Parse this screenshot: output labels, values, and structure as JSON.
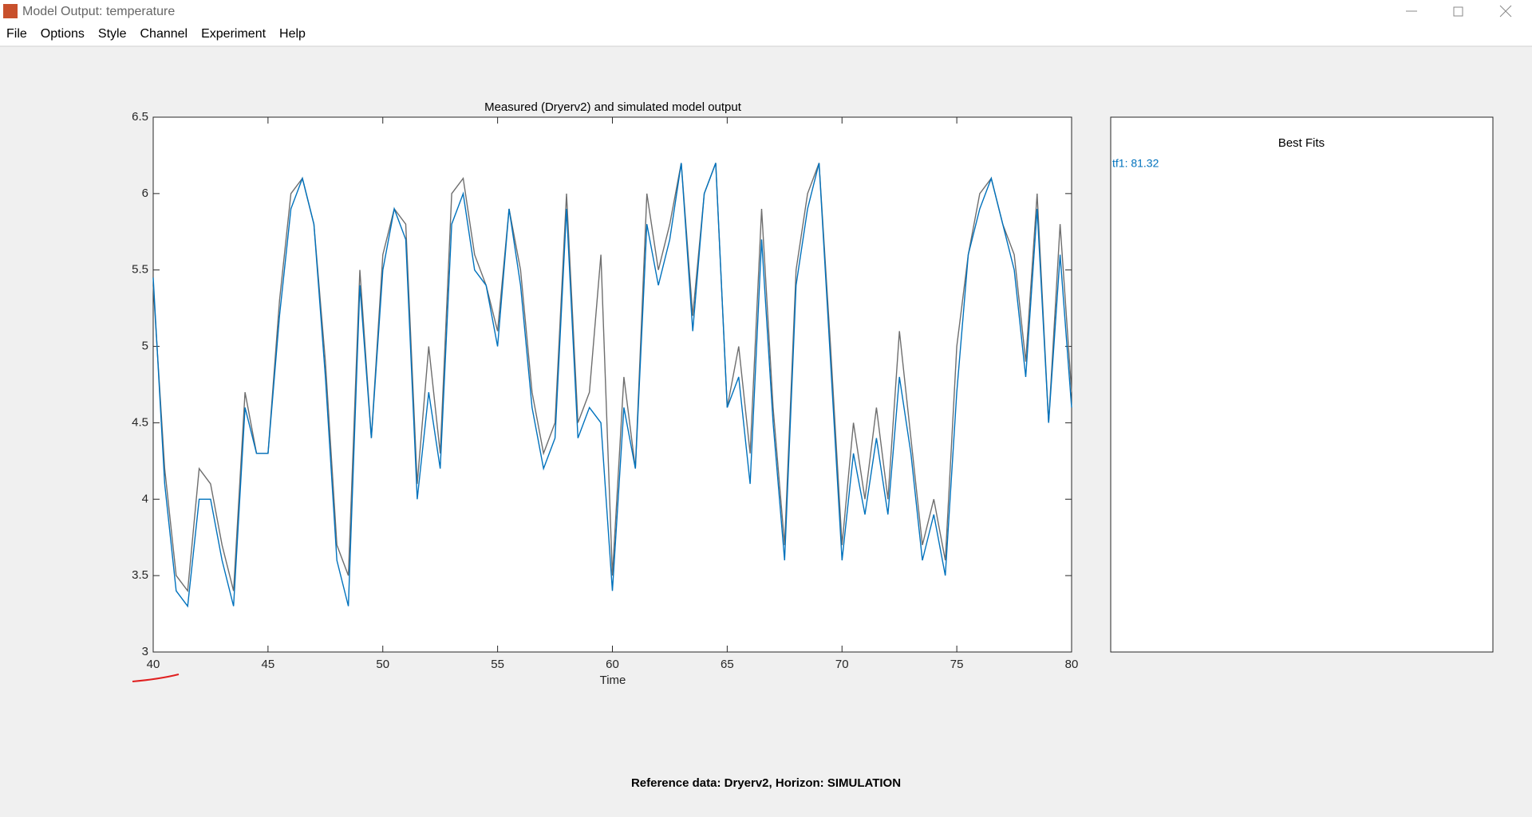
{
  "window_title": "Model Output: temperature",
  "menu": [
    "File",
    "Options",
    "Style",
    "Channel",
    "Experiment",
    "Help"
  ],
  "chart_data": {
    "type": "line",
    "title": "Measured (Dryerv2) and simulated model output",
    "xlabel": "Time",
    "x": [
      40,
      40.5,
      41,
      41.5,
      42,
      42.5,
      43,
      43.5,
      44,
      44.5,
      45,
      45.5,
      46,
      46.5,
      47,
      47.5,
      48,
      48.5,
      49,
      49.5,
      50,
      50.5,
      51,
      51.5,
      52,
      52.5,
      53,
      53.5,
      54,
      54.5,
      55,
      55.5,
      56,
      56.5,
      57,
      57.5,
      58,
      58.5,
      59,
      59.5,
      60,
      60.5,
      61,
      61.5,
      62,
      62.5,
      63,
      63.5,
      64,
      64.5,
      65,
      65.5,
      66,
      66.5,
      67,
      67.5,
      68,
      68.5,
      69,
      69.5,
      70,
      70.5,
      71,
      71.5,
      72,
      72.5,
      73,
      73.5,
      74,
      74.5,
      75,
      75.5,
      76,
      76.5,
      77,
      77.5,
      78,
      78.5,
      79,
      79.5,
      80
    ],
    "series": [
      {
        "color": "#6e6e6e",
        "values": [
          5.4,
          4.2,
          3.5,
          3.4,
          4.2,
          4.1,
          3.7,
          3.4,
          4.7,
          4.3,
          4.3,
          5.3,
          6.0,
          6.1,
          5.8,
          4.9,
          3.7,
          3.5,
          5.5,
          4.4,
          5.6,
          5.9,
          5.8,
          4.1,
          5.0,
          4.3,
          6.0,
          6.1,
          5.6,
          5.4,
          5.1,
          5.9,
          5.5,
          4.7,
          4.3,
          4.5,
          6.0,
          4.5,
          4.7,
          5.6,
          3.5,
          4.8,
          4.2,
          6.0,
          5.5,
          5.8,
          6.2,
          5.2,
          6.0,
          6.2,
          4.6,
          5.0,
          4.3,
          5.9,
          4.6,
          3.7,
          5.5,
          6.0,
          6.2,
          5.0,
          3.7,
          4.5,
          4.0,
          4.6,
          4.0,
          5.1,
          4.4,
          3.7,
          4.0,
          3.6,
          5.0,
          5.6,
          6.0,
          6.1,
          5.8,
          5.6,
          4.9,
          6.0,
          4.5,
          5.8,
          4.7
        ]
      },
      {
        "name": "tf1",
        "color": "#0072bd",
        "values": [
          5.45,
          4.1,
          3.4,
          3.3,
          4.0,
          4.0,
          3.6,
          3.3,
          4.6,
          4.3,
          4.3,
          5.2,
          5.9,
          6.1,
          5.8,
          4.8,
          3.6,
          3.3,
          5.4,
          4.4,
          5.5,
          5.9,
          5.7,
          4.0,
          4.7,
          4.2,
          5.8,
          6.0,
          5.5,
          5.4,
          5.0,
          5.9,
          5.4,
          4.6,
          4.2,
          4.4,
          5.9,
          4.4,
          4.6,
          4.5,
          3.4,
          4.6,
          4.2,
          5.8,
          5.4,
          5.7,
          6.2,
          5.1,
          6.0,
          6.2,
          4.6,
          4.8,
          4.1,
          5.7,
          4.5,
          3.6,
          5.4,
          5.9,
          6.2,
          4.9,
          3.6,
          4.3,
          3.9,
          4.4,
          3.9,
          4.8,
          4.3,
          3.6,
          3.9,
          3.5,
          4.7,
          5.6,
          5.9,
          6.1,
          5.8,
          5.5,
          4.8,
          5.9,
          4.5,
          5.6,
          4.6
        ]
      }
    ],
    "xlim": [
      40,
      80
    ],
    "xticks": [
      40,
      45,
      50,
      55,
      60,
      65,
      70,
      75,
      80
    ],
    "ylim": [
      3,
      6.5
    ],
    "yticks": [
      3,
      3.5,
      4,
      4.5,
      5,
      5.5,
      6,
      6.5
    ]
  },
  "best_fits": {
    "title": "Best Fits",
    "entries": [
      "tf1: 81.32"
    ]
  },
  "footer": "Reference data:  Dryerv2, Horizon: SIMULATION"
}
